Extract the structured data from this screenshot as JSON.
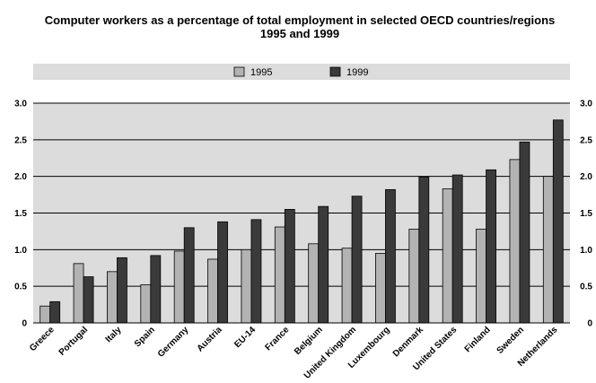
{
  "chart_data": {
    "type": "bar",
    "title": "Computer workers as a percentage of total employment in selected OECD countries/regions",
    "subtitle": "1995 and 1999",
    "categories": [
      "Greece",
      "Portugal",
      "Italy",
      "Spain",
      "Germany",
      "Austria",
      "EU-14",
      "France",
      "Belgium",
      "United Kingdom",
      "Luxembourg",
      "Denmark",
      "United States",
      "Finland",
      "Sweden",
      "Netherlands"
    ],
    "series": [
      {
        "name": "1995",
        "color": "#b3b3b3",
        "values": [
          0.23,
          0.81,
          0.7,
          0.52,
          0.98,
          0.87,
          1.0,
          1.31,
          1.08,
          1.02,
          0.95,
          1.28,
          1.83,
          1.28,
          2.23,
          2.0
        ]
      },
      {
        "name": "1999",
        "color": "#3a3a3a",
        "values": [
          0.29,
          0.63,
          0.89,
          0.92,
          1.3,
          1.38,
          1.41,
          1.55,
          1.59,
          1.73,
          1.82,
          1.99,
          2.02,
          2.09,
          2.47,
          2.77
        ]
      }
    ],
    "ylim": [
      0,
      3
    ],
    "yticks": [
      "0",
      "0.5",
      "1.0",
      "1.5",
      "2.0",
      "2.5",
      "3.0"
    ],
    "ytick_values": [
      0,
      0.5,
      1.0,
      1.5,
      2.0,
      2.5,
      3.0
    ],
    "xlabel": "",
    "ylabel": "",
    "grid": true,
    "legend_position": "top-center",
    "plot_background": "#dcdcdc"
  }
}
